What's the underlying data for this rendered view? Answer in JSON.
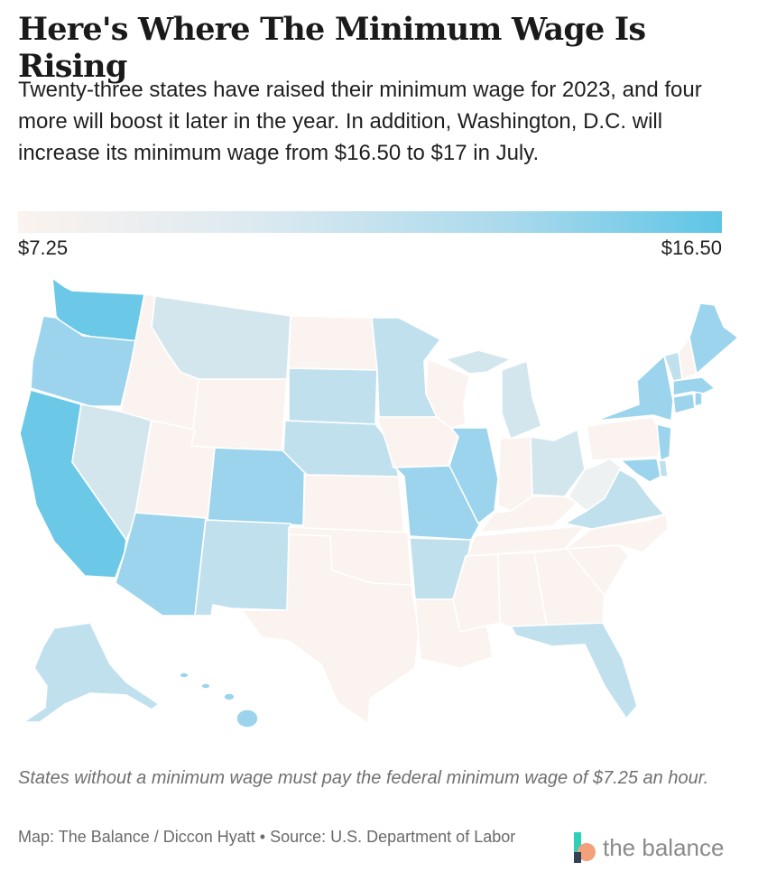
{
  "title": "Here's Where The Minimum Wage Is Rising",
  "subtitle": "Twenty-three states have raised their minimum wage for 2023, and four more will boost it later in the year. In addition, Washington, D.C. will increase its minimum wage from $16.50 to $17 in July.",
  "legend": {
    "min_label": "$7.25",
    "max_label": "$16.50",
    "min_color": "#fbf3ef",
    "max_color": "#5ec5e6"
  },
  "note": "States without a minimum wage must pay the federal minimum wage of $7.25 an hour.",
  "credit": "Map: The Balance / Diccon Hyatt • Source: U.S. Department of Labor",
  "brand": {
    "name": "the balance",
    "logo_colors": [
      "#2fd0b5",
      "#f2a17a",
      "#334155"
    ]
  },
  "map": {
    "scale": "$7.25–$16.50"
  }
}
